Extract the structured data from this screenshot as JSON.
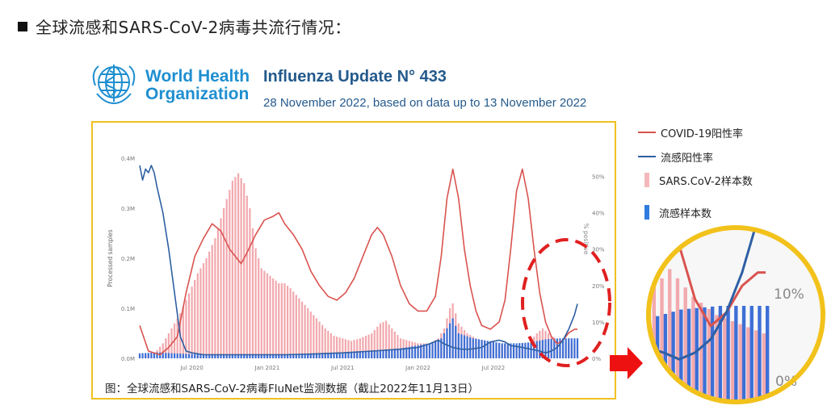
{
  "heading": "全球流感和SARS-CoV-2病毒共流行情况：",
  "who": {
    "line1": "World Health",
    "line2": "Organization"
  },
  "update": {
    "title": "Influenza Update N° 433",
    "subtitle": "28 November 2022, based on data up to 13 November 2022"
  },
  "caption": "图：全球流感和SARS-CoV-2病毒FluNet监测数据（截止2022年11月13日）",
  "legend": [
    {
      "label": "COVID-19阳性率",
      "kind": "line",
      "color": "#d9534f"
    },
    {
      "label": "流感阳性率",
      "kind": "line",
      "color": "#2e5fa3"
    },
    {
      "label": "SARS.CoV-2样本数",
      "kind": "bar",
      "color": "#f4b8bc"
    },
    {
      "label": "流感样本数",
      "kind": "bar",
      "color": "#2f7be0"
    }
  ],
  "colors": {
    "covid": "#d9534f",
    "flu": "#2e5fa3",
    "covid_bar": "#f2a9ae",
    "flu_bar": "#3d6fd6",
    "highlight": "#e02020",
    "arrow": "#ee1111",
    "zoom_border": "#f2c21b"
  },
  "chart_data": {
    "type": "bar",
    "x_tick_labels": [
      "Jul 2020",
      "Jan 2021",
      "Jul 2021",
      "Jan 2022",
      "Jul 2022"
    ],
    "y_left": {
      "label": "Processed samples",
      "ticks": [
        "0.0M",
        "0.1M",
        "0.2M",
        "0.3M",
        "0.4M"
      ],
      "range": [
        0,
        0.4
      ]
    },
    "y_right": {
      "label": "% positive",
      "ticks": [
        "0%",
        "10%",
        "20%",
        "30%",
        "40%",
        "50%"
      ],
      "range": [
        0,
        55
      ]
    },
    "weeks": 152,
    "series": [
      {
        "name": "SARS.CoV-2样本数",
        "kind": "bar",
        "axis": "left",
        "points": [
          [
            0,
            0.005
          ],
          [
            5,
            0.01
          ],
          [
            8,
            0.03
          ],
          [
            11,
            0.06
          ],
          [
            14,
            0.09
          ],
          [
            17,
            0.13
          ],
          [
            20,
            0.17
          ],
          [
            23,
            0.2
          ],
          [
            26,
            0.24
          ],
          [
            29,
            0.3
          ],
          [
            32,
            0.355
          ],
          [
            34,
            0.37
          ],
          [
            36,
            0.35
          ],
          [
            38,
            0.3
          ],
          [
            40,
            0.22
          ],
          [
            42,
            0.18
          ],
          [
            44,
            0.17
          ],
          [
            46,
            0.16
          ],
          [
            48,
            0.15
          ],
          [
            50,
            0.15
          ],
          [
            52,
            0.14
          ],
          [
            55,
            0.12
          ],
          [
            58,
            0.1
          ],
          [
            61,
            0.08
          ],
          [
            64,
            0.06
          ],
          [
            67,
            0.045
          ],
          [
            70,
            0.04
          ],
          [
            73,
            0.035
          ],
          [
            76,
            0.04
          ],
          [
            80,
            0.05
          ],
          [
            83,
            0.07
          ],
          [
            85,
            0.075
          ],
          [
            87,
            0.06
          ],
          [
            90,
            0.04
          ],
          [
            93,
            0.035
          ],
          [
            96,
            0.03
          ],
          [
            100,
            0.03
          ],
          [
            103,
            0.04
          ],
          [
            105,
            0.06
          ],
          [
            107,
            0.1
          ],
          [
            108,
            0.11
          ],
          [
            110,
            0.07
          ],
          [
            113,
            0.05
          ],
          [
            116,
            0.04
          ],
          [
            119,
            0.035
          ],
          [
            122,
            0.03
          ],
          [
            125,
            0.03
          ],
          [
            128,
            0.028
          ],
          [
            131,
            0.026
          ],
          [
            134,
            0.03
          ],
          [
            137,
            0.05
          ],
          [
            139,
            0.06
          ],
          [
            142,
            0.045
          ],
          [
            145,
            0.035
          ],
          [
            148,
            0.03
          ],
          [
            151,
            0.025
          ]
        ]
      },
      {
        "name": "流感样本数",
        "kind": "bar",
        "axis": "left",
        "points": [
          [
            0,
            0.01
          ],
          [
            6,
            0.012
          ],
          [
            12,
            0.01
          ],
          [
            20,
            0.008
          ],
          [
            30,
            0.008
          ],
          [
            40,
            0.007
          ],
          [
            50,
            0.008
          ],
          [
            60,
            0.01
          ],
          [
            70,
            0.012
          ],
          [
            80,
            0.015
          ],
          [
            90,
            0.02
          ],
          [
            95,
            0.025
          ],
          [
            100,
            0.03
          ],
          [
            104,
            0.04
          ],
          [
            107,
            0.07
          ],
          [
            108,
            0.08
          ],
          [
            110,
            0.05
          ],
          [
            115,
            0.04
          ],
          [
            120,
            0.035
          ],
          [
            125,
            0.03
          ],
          [
            130,
            0.03
          ],
          [
            135,
            0.032
          ],
          [
            140,
            0.038
          ],
          [
            145,
            0.04
          ],
          [
            151,
            0.04
          ]
        ]
      },
      {
        "name": "COVID-19阳性率",
        "kind": "line",
        "axis": "right",
        "points": [
          [
            0,
            9
          ],
          [
            3,
            2
          ],
          [
            7,
            1
          ],
          [
            10,
            3
          ],
          [
            13,
            6
          ],
          [
            16,
            18
          ],
          [
            19,
            28
          ],
          [
            22,
            33
          ],
          [
            25,
            37
          ],
          [
            28,
            35
          ],
          [
            31,
            30
          ],
          [
            33,
            28
          ],
          [
            35,
            26
          ],
          [
            37,
            29
          ],
          [
            40,
            34
          ],
          [
            43,
            38
          ],
          [
            46,
            39
          ],
          [
            48,
            40
          ],
          [
            50,
            37
          ],
          [
            53,
            34
          ],
          [
            56,
            30
          ],
          [
            59,
            24
          ],
          [
            62,
            20
          ],
          [
            65,
            17
          ],
          [
            68,
            16
          ],
          [
            71,
            18
          ],
          [
            74,
            22
          ],
          [
            77,
            28
          ],
          [
            80,
            34
          ],
          [
            82,
            36
          ],
          [
            84,
            34
          ],
          [
            87,
            28
          ],
          [
            90,
            20
          ],
          [
            93,
            15
          ],
          [
            96,
            13
          ],
          [
            99,
            13
          ],
          [
            102,
            17
          ],
          [
            104,
            28
          ],
          [
            106,
            44
          ],
          [
            108,
            52
          ],
          [
            110,
            44
          ],
          [
            112,
            30
          ],
          [
            114,
            20
          ],
          [
            116,
            13
          ],
          [
            118,
            9
          ],
          [
            121,
            8
          ],
          [
            124,
            10
          ],
          [
            126,
            16
          ],
          [
            128,
            30
          ],
          [
            130,
            46
          ],
          [
            132,
            52
          ],
          [
            134,
            44
          ],
          [
            136,
            30
          ],
          [
            138,
            18
          ],
          [
            140,
            10
          ],
          [
            142,
            6
          ],
          [
            144,
            4
          ],
          [
            146,
            5
          ],
          [
            148,
            7
          ],
          [
            150,
            8
          ],
          [
            151,
            8
          ]
        ]
      },
      {
        "name": "流感阳性率",
        "kind": "line",
        "axis": "right",
        "points": [
          [
            0,
            53
          ],
          [
            1,
            49
          ],
          [
            2,
            52
          ],
          [
            3,
            51
          ],
          [
            4,
            53
          ],
          [
            5,
            51
          ],
          [
            6,
            47
          ],
          [
            8,
            40
          ],
          [
            10,
            30
          ],
          [
            12,
            18
          ],
          [
            14,
            6
          ],
          [
            16,
            2
          ],
          [
            18,
            1.5
          ],
          [
            22,
            1
          ],
          [
            30,
            1
          ],
          [
            40,
            1
          ],
          [
            50,
            1
          ],
          [
            60,
            1.2
          ],
          [
            70,
            1.5
          ],
          [
            80,
            2
          ],
          [
            90,
            2.5
          ],
          [
            96,
            3
          ],
          [
            100,
            4
          ],
          [
            103,
            5
          ],
          [
            105,
            4
          ],
          [
            108,
            3
          ],
          [
            111,
            2.5
          ],
          [
            114,
            2.5
          ],
          [
            118,
            3
          ],
          [
            121,
            4.5
          ],
          [
            124,
            5
          ],
          [
            126,
            4.5
          ],
          [
            128,
            3.5
          ],
          [
            132,
            3
          ],
          [
            135,
            2.5
          ],
          [
            138,
            2
          ],
          [
            140,
            1.5
          ],
          [
            142,
            2
          ],
          [
            144,
            3
          ],
          [
            146,
            5
          ],
          [
            148,
            8
          ],
          [
            150,
            12
          ],
          [
            151,
            15
          ]
        ]
      }
    ],
    "zoom_inset": {
      "label": "10%",
      "zero_label": "0%"
    }
  }
}
